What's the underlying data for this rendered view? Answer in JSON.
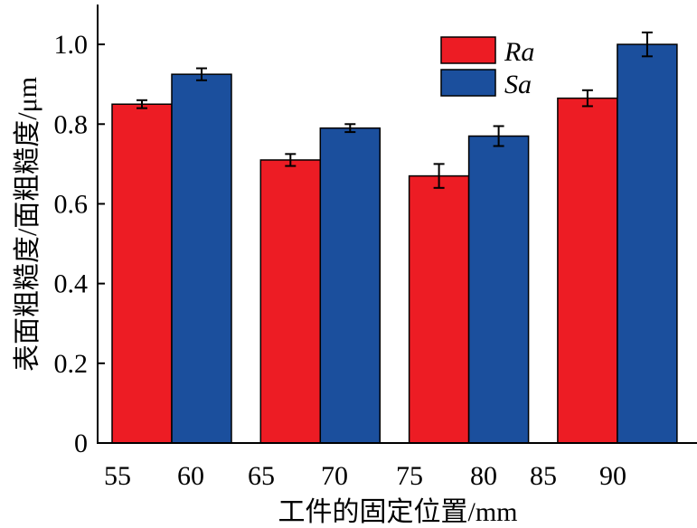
{
  "chart_data": {
    "type": "bar",
    "x_tick_labels": [
      "55",
      "60",
      "65",
      "70",
      "75",
      "80",
      "85",
      "90"
    ],
    "series": [
      {
        "name": "Ra",
        "color": "#ed1c24",
        "values": [
          0.85,
          0.71,
          0.67,
          0.865
        ],
        "errors": [
          0.01,
          0.015,
          0.03,
          0.02
        ]
      },
      {
        "name": "Sa",
        "color": "#1b4f9d",
        "values": [
          0.925,
          0.79,
          0.77,
          1.0
        ],
        "errors": [
          0.015,
          0.01,
          0.025,
          0.03
        ]
      }
    ],
    "xlabel": "工件的固定位置/mm",
    "ylabel": "表面粗糙度/面粗糙度/μm",
    "yticks": [
      0,
      0.2,
      0.4,
      0.6,
      0.8,
      1.0
    ],
    "ytick_labels": [
      "0",
      "0.2",
      "0.4",
      "0.6",
      "0.8",
      "1.0"
    ],
    "ylim": [
      0,
      1.1
    ],
    "grid": false,
    "legend_position": "top-right"
  }
}
